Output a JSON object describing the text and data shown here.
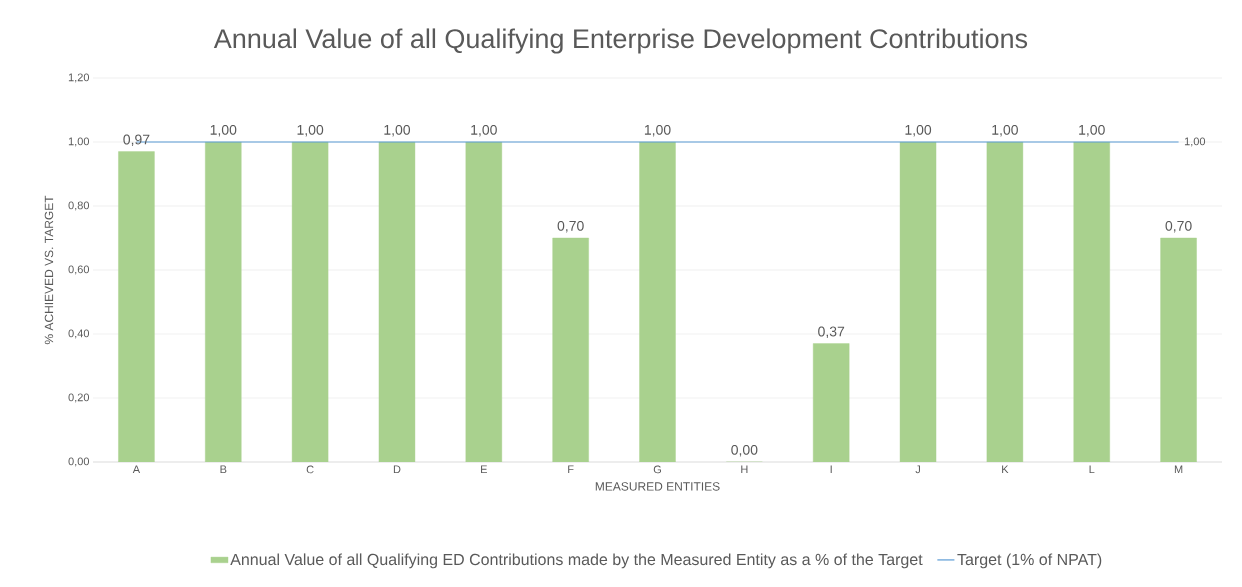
{
  "chart_data": {
    "type": "bar",
    "title": "Annual Value of all Qualifying Enterprise Development Contributions",
    "xlabel": "MEASURED ENTITIES",
    "ylabel": "% ACHIEVED VS. TARGET",
    "categories": [
      "A",
      "B",
      "C",
      "D",
      "E",
      "F",
      "G",
      "H",
      "I",
      "J",
      "K",
      "L",
      "M"
    ],
    "series": [
      {
        "name": "Annual Value of all Qualifying  ED Contributions  made by the Measured Entity as a % of the Target",
        "color": "#a9d18e",
        "values": [
          0.97,
          1.0,
          1.0,
          1.0,
          1.0,
          0.7,
          1.0,
          0.0,
          0.37,
          1.0,
          1.0,
          1.0,
          0.7
        ],
        "value_labels": [
          "0,97",
          "1,00",
          "1,00",
          "1,00",
          "1,00",
          "0,70",
          "1,00",
          "0,00",
          "0,37",
          "1,00",
          "1,00",
          "1,00",
          "0,70"
        ]
      },
      {
        "type": "line",
        "name": "Target (1% of NPAT)",
        "color": "#5b9bd5",
        "values": [
          1.0,
          1.0,
          1.0,
          1.0,
          1.0,
          1.0,
          1.0,
          1.0,
          1.0,
          1.0,
          1.0,
          1.0,
          1.0
        ]
      }
    ],
    "annotations": [
      {
        "text": "1,00",
        "x": "M",
        "y": 1.0
      }
    ],
    "ylim": [
      0,
      1.2
    ],
    "yticks": [
      {
        "value": 0,
        "label": "0,00"
      },
      {
        "value": 0.2,
        "label": "0,20"
      },
      {
        "value": 0.4,
        "label": "0,40"
      },
      {
        "value": 0.6,
        "label": "0,60"
      },
      {
        "value": 0.8,
        "label": "0,80"
      },
      {
        "value": 1.0,
        "label": "1,00"
      },
      {
        "value": 1.2,
        "label": "1,20"
      }
    ],
    "grid": "y",
    "legend": "bottom"
  }
}
